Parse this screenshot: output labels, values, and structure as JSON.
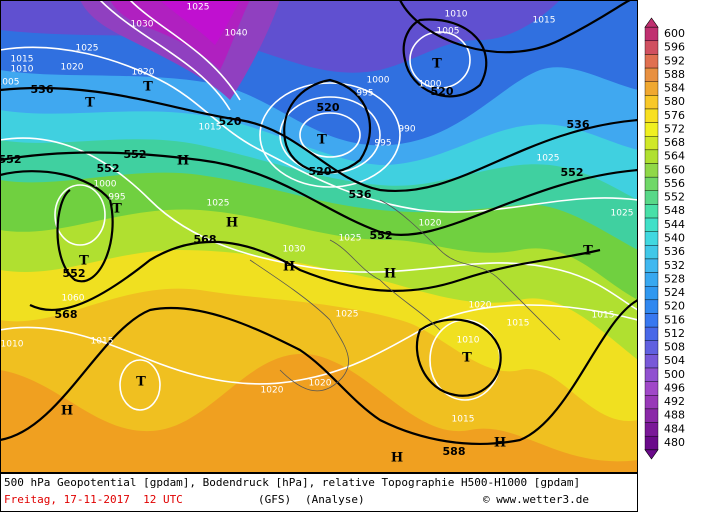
{
  "map": {
    "geopotential_labels": [
      "536",
      "552",
      "552",
      "552",
      "568",
      "552",
      "568",
      "520",
      "520",
      "520",
      "536",
      "552",
      "520",
      "536",
      "552",
      "588"
    ],
    "pressure_labels": [
      "1025",
      "1030",
      "1040",
      "1010",
      "1015",
      "1005",
      "1000",
      "995",
      "1000",
      "990",
      "995",
      "1025",
      "1025",
      "1030",
      "1025",
      "1020",
      "1025",
      "1020",
      "1015",
      "1015",
      "1010",
      "1025",
      "1020",
      "1020",
      "1015",
      "1010",
      "1015",
      "1000",
      "995",
      "1060",
      "1020",
      "1025",
      "1015",
      "1010",
      "1020",
      "1015",
      "1005"
    ],
    "centers": [
      "H",
      "H",
      "H",
      "H",
      "H",
      "H",
      "H",
      "T",
      "T",
      "T",
      "T",
      "T",
      "T",
      "T",
      "T",
      "T"
    ]
  },
  "scale": {
    "levels": [
      600,
      596,
      592,
      588,
      584,
      580,
      576,
      572,
      568,
      564,
      560,
      556,
      552,
      548,
      544,
      540,
      536,
      532,
      528,
      524,
      520,
      516,
      512,
      508,
      504,
      500,
      496,
      492,
      488,
      484,
      480
    ],
    "colors": [
      "#c03070",
      "#d05060",
      "#e07050",
      "#e89040",
      "#f0a830",
      "#f8c828",
      "#f8e020",
      "#f0f020",
      "#d0e828",
      "#b0e030",
      "#90d848",
      "#70d868",
      "#58d888",
      "#48e0a8",
      "#40e0c8",
      "#40d8e0",
      "#40c8e8",
      "#40b8f0",
      "#38a8f0",
      "#3098f0",
      "#3088f0",
      "#3878f0",
      "#4868e8",
      "#6060e0",
      "#7858d8",
      "#9050d0",
      "#a048c8",
      "#9838b8",
      "#8a28a8",
      "#7a1898",
      "#6a0a8a"
    ]
  },
  "caption": {
    "line1": "500 hPa Geopotential [gpdam], Bodendruck [hPa], relative Topographie H500-H1000 [gpdam]",
    "date": "Freitag, 17-11-2017  12 UTC",
    "model": "(GFS)",
    "run": "(Analyse)",
    "credit": "© www.wetter3.de"
  }
}
